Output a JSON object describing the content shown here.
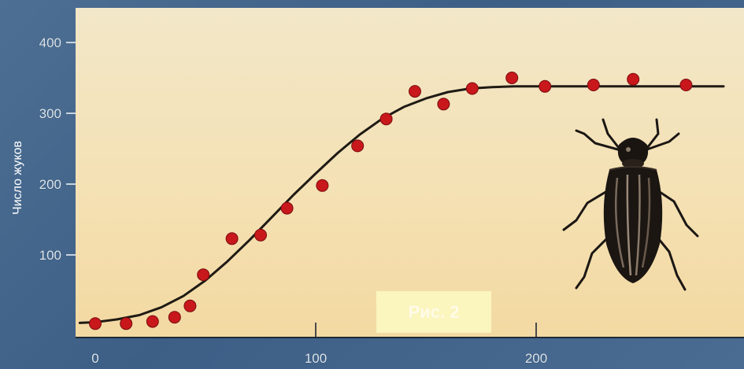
{
  "chart_data": {
    "type": "scatter",
    "title": "",
    "xlabel": "",
    "ylabel": "Число жуков",
    "xlim": [
      -10,
      295
    ],
    "ylim": [
      -10,
      420
    ],
    "x_ticks": [
      0,
      100,
      200
    ],
    "x_tick_labels": [
      "0",
      "100",
      "200"
    ],
    "y_ticks": [
      100,
      200,
      300,
      400
    ],
    "y_tick_labels": [
      "100",
      "200",
      "300",
      "400"
    ],
    "grid": false,
    "legend": "none",
    "series": [
      {
        "kind": "points",
        "color": "#c8181c",
        "x": [
          0,
          14,
          26,
          36,
          43,
          49,
          62,
          75,
          87,
          103,
          119,
          132,
          145,
          158,
          171,
          189,
          204,
          226,
          244,
          268
        ],
        "y": [
          3,
          3,
          6,
          12,
          28,
          72,
          123,
          128,
          166,
          198,
          254,
          292,
          331,
          313,
          335,
          350,
          338,
          340,
          348,
          340
        ]
      },
      {
        "kind": "fitted-curve",
        "color": "#1f1a14",
        "x": [
          -7,
          0,
          10,
          20,
          30,
          40,
          50,
          60,
          70,
          80,
          90,
          100,
          110,
          120,
          130,
          140,
          150,
          160,
          170,
          180,
          190,
          200,
          220,
          240,
          260,
          285
        ],
        "y": [
          4,
          5,
          9,
          15,
          26,
          42,
          64,
          91,
          121,
          153,
          185,
          215,
          244,
          270,
          292,
          309,
          321,
          330,
          335,
          337,
          338,
          338,
          338,
          338,
          338,
          338
        ]
      }
    ],
    "annotation": "Рис. 2"
  },
  "icons": {
    "illustration": "beetle-icon"
  }
}
